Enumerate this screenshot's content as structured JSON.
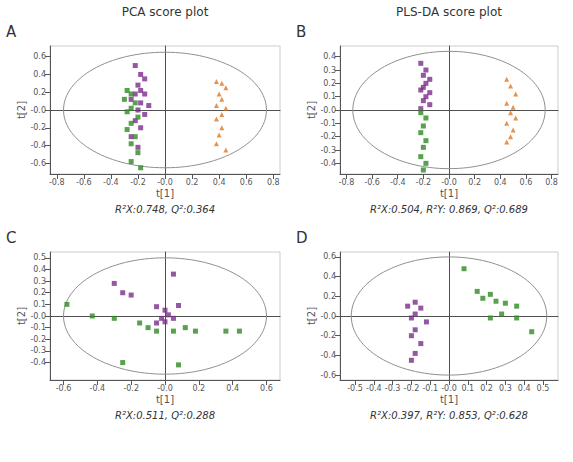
{
  "chart_data": [
    {
      "type": "scatter",
      "title": "A",
      "subtitle": "R²X:0.748, Q²:0.364",
      "annotations": [
        "PCA score plot"
      ],
      "xlabel": "t[1]",
      "ylabel": "t[2]",
      "xlim": [
        -0.85,
        0.85
      ],
      "ylim": [
        -0.72,
        0.72
      ],
      "xticks": [
        -0.8,
        -0.6,
        -0.4,
        -0.2,
        {
          "value": 0.0,
          "label": "-0.0"
        },
        0.2,
        0.4,
        0.6,
        0.8
      ],
      "yticks": [
        -0.6,
        -0.4,
        -0.2,
        {
          "value": 0.0,
          "label": "-0.0"
        },
        0.2,
        0.4,
        0.6
      ],
      "grid": false,
      "ellipse": {
        "cx": 0.0,
        "cy": 0.0,
        "rx": 0.75,
        "ry": 0.65,
        "color": "#909090"
      },
      "series": [
        {
          "color": "#7B2D8B",
          "marker": "square",
          "values": [
            [
              -0.22,
              0.5
            ],
            [
              -0.18,
              0.4
            ],
            [
              -0.15,
              0.35
            ],
            [
              -0.2,
              0.28
            ],
            [
              -0.18,
              0.22
            ],
            [
              -0.22,
              0.18
            ],
            [
              -0.15,
              0.18
            ],
            [
              -0.25,
              0.12
            ],
            [
              -0.18,
              0.08
            ],
            [
              -0.12,
              0.05
            ],
            [
              -0.2,
              0.0
            ],
            [
              -0.15,
              -0.05
            ],
            [
              -0.22,
              -0.12
            ],
            [
              -0.18,
              -0.2
            ],
            [
              -0.25,
              -0.3
            ],
            [
              -0.2,
              -0.42
            ]
          ]
        },
        {
          "color": "#2E8B22",
          "marker": "square",
          "values": [
            [
              -0.28,
              0.22
            ],
            [
              -0.25,
              0.18
            ],
            [
              -0.3,
              0.12
            ],
            [
              -0.22,
              0.08
            ],
            [
              -0.25,
              0.02
            ],
            [
              -0.28,
              -0.02
            ],
            [
              -0.2,
              -0.08
            ],
            [
              -0.25,
              -0.15
            ],
            [
              -0.28,
              -0.22
            ],
            [
              -0.22,
              -0.3
            ],
            [
              -0.25,
              -0.38
            ],
            [
              -0.2,
              -0.48
            ],
            [
              -0.25,
              -0.58
            ],
            [
              -0.18,
              -0.65
            ]
          ]
        },
        {
          "color": "#E07820",
          "marker": "triangle",
          "values": [
            [
              0.38,
              0.32
            ],
            [
              0.42,
              0.3
            ],
            [
              0.45,
              0.25
            ],
            [
              0.4,
              0.18
            ],
            [
              0.42,
              0.12
            ],
            [
              0.38,
              0.05
            ],
            [
              0.45,
              0.02
            ],
            [
              0.42,
              -0.05
            ],
            [
              0.38,
              -0.1
            ],
            [
              0.42,
              -0.2
            ],
            [
              0.4,
              -0.28
            ],
            [
              0.38,
              -0.38
            ],
            [
              0.45,
              -0.45
            ]
          ]
        }
      ]
    },
    {
      "type": "scatter",
      "title": "B",
      "subtitle": "R²X:0.504, R²Y: 0.869, Q²:0.689",
      "annotations": [
        "PLS-DA score plot"
      ],
      "xlabel": "t[1]",
      "ylabel": "t[2]",
      "xlim": [
        -0.85,
        0.85
      ],
      "ylim": [
        -0.48,
        0.48
      ],
      "xticks": [
        -0.8,
        -0.6,
        -0.4,
        -0.2,
        {
          "value": 0.0,
          "label": "-0.0"
        },
        0.2,
        0.4,
        0.6,
        0.8
      ],
      "yticks": [
        -0.4,
        -0.3,
        -0.2,
        -0.1,
        {
          "value": 0.0,
          "label": "-0.0"
        },
        0.1,
        0.2,
        0.3,
        0.4
      ],
      "grid": false,
      "ellipse": {
        "cx": 0.0,
        "cy": 0.0,
        "rx": 0.75,
        "ry": 0.44,
        "color": "#909090"
      },
      "series": [
        {
          "color": "#7B2D8B",
          "marker": "square",
          "values": [
            [
              -0.22,
              0.35
            ],
            [
              -0.18,
              0.3
            ],
            [
              -0.2,
              0.26
            ],
            [
              -0.15,
              0.23
            ],
            [
              -0.18,
              0.2
            ],
            [
              -0.2,
              0.17
            ],
            [
              -0.22,
              0.15
            ],
            [
              -0.15,
              0.13
            ],
            [
              -0.18,
              0.1
            ],
            [
              -0.2,
              0.07
            ],
            [
              -0.15,
              0.04
            ],
            [
              -0.22,
              0.01
            ]
          ]
        },
        {
          "color": "#2E8B22",
          "marker": "square",
          "values": [
            [
              -0.22,
              -0.02
            ],
            [
              -0.18,
              -0.06
            ],
            [
              -0.2,
              -0.12
            ],
            [
              -0.22,
              -0.17
            ],
            [
              -0.18,
              -0.23
            ],
            [
              -0.2,
              -0.28
            ],
            [
              -0.22,
              -0.35
            ],
            [
              -0.18,
              -0.4
            ],
            [
              -0.2,
              -0.45
            ]
          ]
        },
        {
          "color": "#E07820",
          "marker": "triangle",
          "values": [
            [
              0.45,
              0.23
            ],
            [
              0.48,
              0.18
            ],
            [
              0.52,
              0.12
            ],
            [
              0.45,
              0.05
            ],
            [
              0.5,
              0.02
            ],
            [
              0.48,
              -0.02
            ],
            [
              0.52,
              -0.06
            ],
            [
              0.45,
              -0.1
            ],
            [
              0.5,
              -0.15
            ],
            [
              0.48,
              -0.2
            ],
            [
              0.45,
              -0.24
            ]
          ]
        }
      ]
    },
    {
      "type": "scatter",
      "title": "C",
      "subtitle": "R²X:0.511, Q²:0.288",
      "xlabel": "t[1]",
      "ylabel": "t[2]",
      "xlim": [
        -0.68,
        0.68
      ],
      "ylim": [
        -0.55,
        0.55
      ],
      "xticks": [
        -0.6,
        -0.4,
        -0.2,
        {
          "value": 0.0,
          "label": "-0.0"
        },
        0.2,
        0.4,
        0.6
      ],
      "yticks": [
        -0.4,
        -0.3,
        -0.2,
        -0.1,
        {
          "value": 0.0,
          "label": "-0.0"
        },
        0.1,
        0.2,
        0.3,
        0.4,
        0.5
      ],
      "grid": false,
      "ellipse": {
        "cx": 0.0,
        "cy": 0.0,
        "rx": 0.6,
        "ry": 0.5,
        "color": "#909090"
      },
      "series": [
        {
          "color": "#7B2D8B",
          "marker": "square",
          "values": [
            [
              -0.3,
              0.28
            ],
            [
              -0.25,
              0.2
            ],
            [
              -0.2,
              0.18
            ],
            [
              0.05,
              0.36
            ],
            [
              -0.05,
              0.08
            ],
            [
              0.0,
              0.05
            ],
            [
              0.02,
              0.01
            ],
            [
              -0.02,
              -0.02
            ],
            [
              0.05,
              -0.02
            ],
            [
              0.0,
              -0.05
            ],
            [
              -0.05,
              -0.06
            ],
            [
              0.08,
              0.09
            ]
          ]
        },
        {
          "color": "#2E8B22",
          "marker": "square",
          "values": [
            [
              -0.58,
              0.1
            ],
            [
              -0.43,
              0.0
            ],
            [
              -0.3,
              -0.02
            ],
            [
              -0.15,
              -0.06
            ],
            [
              -0.1,
              -0.1
            ],
            [
              -0.05,
              -0.13
            ],
            [
              0.05,
              -0.13
            ],
            [
              0.12,
              -0.1
            ],
            [
              0.18,
              -0.13
            ],
            [
              0.36,
              -0.13
            ],
            [
              0.44,
              -0.13
            ],
            [
              -0.25,
              -0.4
            ],
            [
              0.08,
              -0.42
            ]
          ]
        }
      ]
    },
    {
      "type": "scatter",
      "title": "D",
      "subtitle": "R²X:0.397, R²Y: 0.853, Q²:0.628",
      "xlabel": "t[1]",
      "ylabel": "t[2]",
      "xlim": [
        -0.58,
        0.58
      ],
      "ylim": [
        -0.65,
        0.65
      ],
      "xticks": [
        -0.5,
        -0.4,
        -0.3,
        -0.2,
        -0.1,
        {
          "value": 0.0,
          "label": "-0.0"
        },
        0.1,
        0.2,
        0.3,
        0.4,
        0.5
      ],
      "yticks": [
        -0.6,
        -0.4,
        -0.2,
        {
          "value": 0.0,
          "label": "-0.0"
        },
        0.2,
        0.4,
        0.6
      ],
      "grid": false,
      "ellipse": {
        "cx": 0.0,
        "cy": 0.0,
        "rx": 0.52,
        "ry": 0.6,
        "color": "#909090"
      },
      "series": [
        {
          "color": "#7B2D8B",
          "marker": "square",
          "values": [
            [
              -0.18,
              0.14
            ],
            [
              -0.22,
              0.1
            ],
            [
              -0.15,
              0.08
            ],
            [
              -0.18,
              0.02
            ],
            [
              -0.2,
              -0.02
            ],
            [
              -0.12,
              -0.06
            ],
            [
              -0.18,
              -0.14
            ],
            [
              -0.2,
              -0.2
            ],
            [
              -0.15,
              -0.28
            ],
            [
              -0.18,
              -0.38
            ],
            [
              -0.2,
              -0.45
            ]
          ]
        },
        {
          "color": "#2E8B22",
          "marker": "square",
          "values": [
            [
              0.08,
              0.48
            ],
            [
              0.15,
              0.25
            ],
            [
              0.22,
              0.22
            ],
            [
              0.18,
              0.18
            ],
            [
              0.25,
              0.15
            ],
            [
              0.3,
              0.13
            ],
            [
              0.36,
              0.1
            ],
            [
              0.28,
              0.02
            ],
            [
              0.36,
              -0.02
            ],
            [
              0.44,
              -0.16
            ],
            [
              0.22,
              -0.02
            ]
          ]
        }
      ]
    }
  ]
}
